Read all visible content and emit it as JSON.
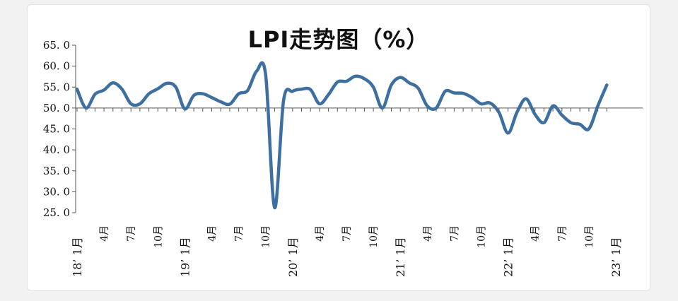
{
  "chart_data": {
    "type": "line",
    "title": "LPI走势图（%）",
    "xlabel": "",
    "ylabel": "",
    "ylim": [
      25,
      65
    ],
    "yticks": [
      "65. 0",
      "60. 0",
      "55. 0",
      "50. 0",
      "45. 0",
      "40. 0",
      "35. 0",
      "30. 0",
      "25. 0"
    ],
    "ytick_values": [
      65,
      60,
      55,
      50,
      45,
      40,
      35,
      30,
      25
    ],
    "reference_line": 50,
    "x_tick_labels": [
      {
        "index": 0,
        "label": "18’1月"
      },
      {
        "index": 3,
        "label": "4月"
      },
      {
        "index": 6,
        "label": "7月"
      },
      {
        "index": 9,
        "label": "10月"
      },
      {
        "index": 12,
        "label": "19’1月"
      },
      {
        "index": 15,
        "label": "4月"
      },
      {
        "index": 18,
        "label": "7月"
      },
      {
        "index": 21,
        "label": "10月"
      },
      {
        "index": 24,
        "label": "20’1月"
      },
      {
        "index": 27,
        "label": "4月"
      },
      {
        "index": 30,
        "label": "7月"
      },
      {
        "index": 33,
        "label": "10月"
      },
      {
        "index": 36,
        "label": "21’1月"
      },
      {
        "index": 39,
        "label": "4月"
      },
      {
        "index": 42,
        "label": "7月"
      },
      {
        "index": 45,
        "label": "10月"
      },
      {
        "index": 48,
        "label": "22’1月"
      },
      {
        "index": 51,
        "label": "4月"
      },
      {
        "index": 54,
        "label": "7月"
      },
      {
        "index": 57,
        "label": "10月"
      },
      {
        "index": 60,
        "label": "23’1月"
      }
    ],
    "series": [
      {
        "color": "#3d6fa0",
        "values": [
          54.5,
          50.0,
          53.3,
          54.3,
          56.0,
          54.5,
          51.0,
          51.0,
          53.4,
          54.6,
          55.9,
          55.0,
          49.8,
          53.0,
          53.4,
          52.5,
          51.5,
          50.9,
          53.4,
          54.2,
          58.8,
          58.0,
          26.2,
          51.8,
          54.0,
          54.5,
          54.4,
          51.0,
          53.2,
          56.2,
          56.4,
          57.6,
          57.0,
          55.0,
          50.0,
          55.5,
          57.3,
          56.0,
          54.7,
          50.5,
          50.0,
          54.0,
          53.6,
          53.5,
          52.5,
          51.0,
          51.2,
          48.9,
          44.0,
          49.0,
          52.2,
          48.5,
          46.5,
          50.5,
          48.3,
          46.5,
          46.1,
          45.0,
          50.5,
          55.5
        ]
      }
    ]
  }
}
